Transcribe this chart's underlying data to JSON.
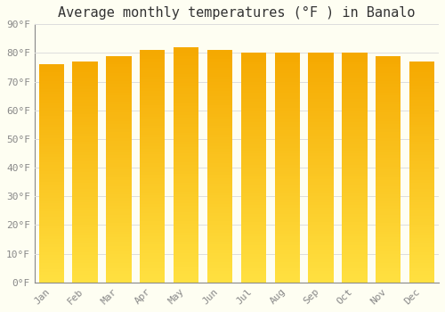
{
  "title": "Average monthly temperatures (°F ) in Banalo",
  "months": [
    "Jan",
    "Feb",
    "Mar",
    "Apr",
    "May",
    "Jun",
    "Jul",
    "Aug",
    "Sep",
    "Oct",
    "Nov",
    "Dec"
  ],
  "values": [
    76,
    77,
    79,
    81,
    82,
    81,
    80,
    80,
    80,
    80,
    79,
    77
  ],
  "bar_color_top": "#F5A800",
  "bar_color_bottom": "#FFE040",
  "background_color": "#FEFEF2",
  "grid_color": "#DDDDDD",
  "ylim": [
    0,
    90
  ],
  "yticks": [
    0,
    10,
    20,
    30,
    40,
    50,
    60,
    70,
    80,
    90
  ],
  "ytick_labels": [
    "0°F",
    "10°F",
    "20°F",
    "30°F",
    "40°F",
    "50°F",
    "60°F",
    "70°F",
    "80°F",
    "90°F"
  ],
  "title_fontsize": 11,
  "tick_fontsize": 8,
  "font_family": "monospace",
  "bar_width": 0.75,
  "n_grad": 80
}
